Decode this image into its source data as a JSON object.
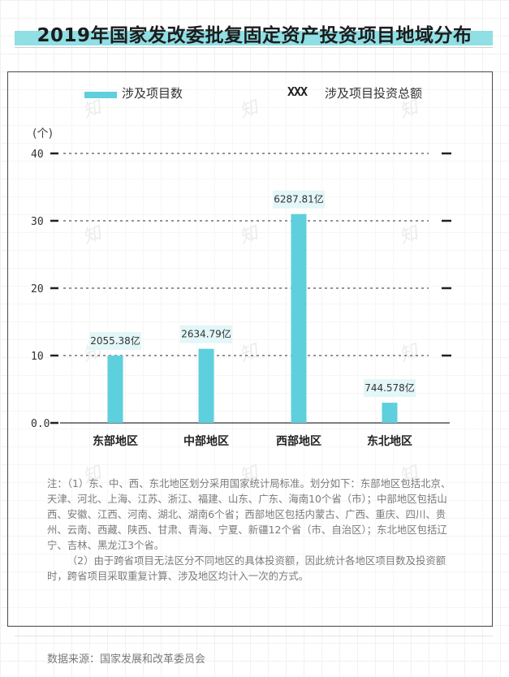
{
  "title": "2019年国家发改委批复固定资产投资项目地域分布",
  "legend": {
    "bars_label": "涉及项目数",
    "total_sample": "XXX",
    "total_label": "涉及项目投资总额"
  },
  "unit": "(个)",
  "notes": {
    "note1": "注：（1）东、中、西、东北地区划分采用国家统计局标准。划分如下：东部地区包括北京、天津、河北、上海、江苏、浙江、福建、山东、广东、海南10个省（市）；中部地区包括山西、安徽、江西、河南、湖北、湖南6个省；西部地区包括内蒙古、广西、重庆、四川、贵州、云南、西藏、陕西、甘肃、青海、宁夏、新疆12个省（市、自治区）；东北地区包括辽宁、吉林、黑龙江3个省。",
    "note2": "（2）由于跨省项目无法区分不同地区的具体投资额，因此统计各地区项目数及投资额时，跨省项目采取重复计算、涉及地区均计入一次的方式。"
  },
  "source": "数据来源：国家发展和改革委员会",
  "watermark": "知",
  "colors": {
    "bar": "#5ecfdc",
    "accent_band": "#8fdfe4",
    "label_box": "#e3f6f8"
  },
  "chart_data": {
    "type": "bar",
    "categories": [
      "东部地区",
      "中部地区",
      "西部地区",
      "东北地区"
    ],
    "series": [
      {
        "name": "涉及项目数",
        "values": [
          10,
          11,
          31,
          3
        ]
      }
    ],
    "data_labels": [
      "2055.38亿",
      "2634.79亿",
      "6287.81亿",
      "744.578亿"
    ],
    "ylim": [
      0,
      40
    ],
    "yticks": [
      0,
      10,
      20,
      30,
      40
    ],
    "ytick_labels": [
      "0.0",
      "10",
      "20",
      "30",
      "40"
    ],
    "grid": false,
    "legend_position": "top"
  }
}
